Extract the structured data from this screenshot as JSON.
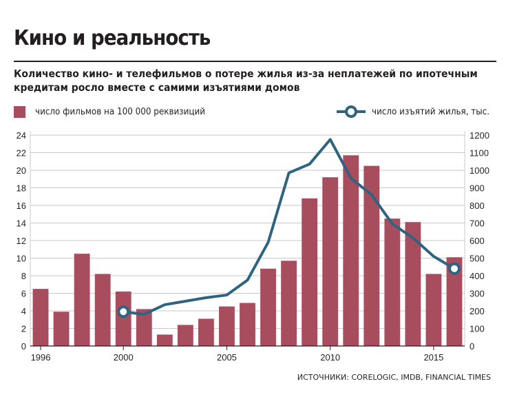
{
  "title": "Кино и реальность",
  "subtitle": "Количество кино- и телефильмов о потере жилья из-за неплатежей по ипотечным кредитам росло вместе с самими изъятиями домов",
  "legend": {
    "bars": "число фильмов на 100 000 реквизиций",
    "line": "число изъятий жилья, тыс."
  },
  "source": "ИСТОЧНИКИ: CORELOGIC, IMDB, FINANCIAL TIMES",
  "colors": {
    "bar": "#a84d5e",
    "line": "#2e6480",
    "grid": "#c9c9c9",
    "text": "#231f20"
  },
  "chart_data": {
    "type": "bar",
    "categories": [
      1996,
      1997,
      1998,
      1999,
      2000,
      2001,
      2002,
      2003,
      2004,
      2005,
      2006,
      2007,
      2008,
      2009,
      2010,
      2011,
      2012,
      2013,
      2014,
      2015,
      2016
    ],
    "x_tick_labels": [
      "1996",
      "2000",
      "2005",
      "2010",
      "2015"
    ],
    "series": [
      {
        "name": "число фильмов на 100 000 реквизиций",
        "axis": "left",
        "type": "bar",
        "values": [
          6.5,
          3.9,
          10.5,
          8.2,
          6.2,
          4.2,
          1.3,
          2.4,
          3.1,
          4.5,
          4.9,
          8.8,
          9.7,
          16.8,
          19.2,
          21.7,
          20.5,
          14.5,
          14.1,
          8.2,
          10.1
        ]
      },
      {
        "name": "число изъятий жилья, тыс.",
        "axis": "right",
        "type": "line",
        "x": [
          2000,
          2001,
          2002,
          2003,
          2004,
          2005,
          2006,
          2007,
          2008,
          2009,
          2010,
          2011,
          2012,
          2013,
          2014,
          2015,
          2016
        ],
        "values": [
          195,
          180,
          235,
          255,
          275,
          290,
          375,
          590,
          985,
          1035,
          1175,
          955,
          860,
          695,
          615,
          510,
          440
        ],
        "markers_at": [
          2000,
          2016
        ]
      }
    ],
    "y_left": {
      "lim": [
        0,
        24
      ],
      "ticks": [
        0,
        2,
        4,
        6,
        8,
        10,
        12,
        14,
        16,
        18,
        20,
        22,
        24
      ]
    },
    "y_right": {
      "lim": [
        0,
        1200
      ],
      "ticks": [
        0,
        100,
        200,
        300,
        400,
        500,
        600,
        700,
        800,
        900,
        1000,
        1100,
        1200
      ]
    },
    "grid": true,
    "legend_position": "top"
  }
}
